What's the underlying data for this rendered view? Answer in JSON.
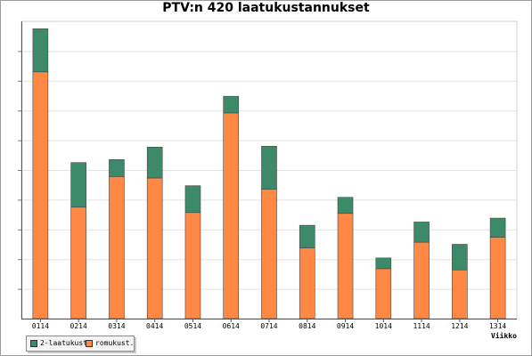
{
  "chart_data": {
    "type": "bar",
    "stacked": true,
    "title": "PTV:n 420 laatukustannukset",
    "xlabel": "Viikko",
    "ylabel": "",
    "categories": [
      "0114",
      "0214",
      "0314",
      "0414",
      "0514",
      "0614",
      "0714",
      "0814",
      "0914",
      "1014",
      "1114",
      "1214",
      "1314"
    ],
    "series": [
      {
        "name": "romukust.",
        "color": "#ff8844",
        "values": [
          83,
          37.5,
          47.8,
          47.3,
          35.7,
          69.2,
          43.5,
          23.8,
          35.4,
          16.8,
          25.7,
          16.4,
          27.4
        ]
      },
      {
        "name": "2-laatukust.",
        "color": "#3d8a6a",
        "values": [
          14.5,
          15,
          5.7,
          10.4,
          9,
          5.6,
          14.5,
          7.6,
          5.4,
          3.6,
          6.8,
          8.6,
          6.4
        ]
      }
    ],
    "ylim": [
      0,
      100
    ],
    "grid": true,
    "legend": "bottom-left"
  }
}
